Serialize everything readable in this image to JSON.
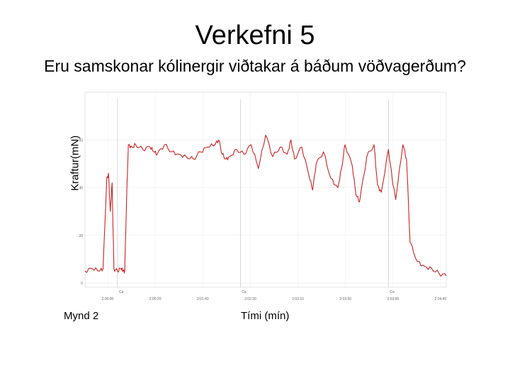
{
  "slide": {
    "title": "Verkefni 5",
    "subtitle": "Eru samskonar kólinergir viðtakar á báðum vöðvagerðum?",
    "ylabel": "Kraftur(mN)",
    "caption": "Mynd 2",
    "xlabel": "Tími (mín)"
  },
  "chart_data": {
    "type": "line",
    "title": "",
    "xlabel": "Tími (mín)",
    "ylabel": "Kraftur(mN)",
    "xlim": [
      0,
      1
    ],
    "ylim": [
      0,
      80
    ],
    "grid": true,
    "y_ticks": [
      "0",
      "20",
      "40",
      "60"
    ],
    "x_ticks": [
      "2:00:00",
      "2:00:20",
      "2:01:40",
      "2:02:20",
      "2:03:10",
      "2:03:50",
      "2:03:00",
      "2:04:40"
    ],
    "line_color": "#cc2222",
    "series": [
      {
        "x": [
          0,
          0.02,
          0.04,
          0.05,
          0.06,
          0.065,
          0.07,
          0.075,
          0.08,
          0.09,
          0.1,
          0.105,
          0.11,
          0.115,
          0.12,
          0.13,
          0.14,
          0.16,
          0.18,
          0.19,
          0.2,
          0.22,
          0.24,
          0.26,
          0.28,
          0.3,
          0.32,
          0.34,
          0.36,
          0.37,
          0.38,
          0.39,
          0.4,
          0.42,
          0.44,
          0.46,
          0.48,
          0.5,
          0.52,
          0.54,
          0.56,
          0.57,
          0.58,
          0.6,
          0.62,
          0.63,
          0.64,
          0.66,
          0.68,
          0.7,
          0.71,
          0.72,
          0.74,
          0.75,
          0.76,
          0.78,
          0.8,
          0.81,
          0.82,
          0.84,
          0.85,
          0.86,
          0.88,
          0.89,
          0.9,
          0.92,
          0.94,
          0.96,
          0.98,
          1.0
        ],
        "values": [
          5,
          6,
          5,
          6,
          43,
          46,
          30,
          42,
          6,
          5,
          6,
          5,
          5,
          35,
          58,
          57,
          58,
          56,
          57,
          55,
          54,
          58,
          55,
          54,
          53,
          52,
          55,
          57,
          58,
          60,
          54,
          52,
          53,
          56,
          54,
          58,
          48,
          62,
          53,
          57,
          54,
          60,
          52,
          57,
          45,
          39,
          50,
          55,
          44,
          40,
          48,
          58,
          49,
          37,
          34,
          53,
          58,
          41,
          38,
          56,
          44,
          35,
          58,
          52,
          17,
          9,
          7,
          6,
          4,
          3
        ]
      }
    ],
    "markers": [
      {
        "x": 0.09,
        "label": "Ca"
      },
      {
        "x": 0.43,
        "label": "Ca"
      },
      {
        "x": 0.84,
        "label": "Ca"
      }
    ]
  }
}
